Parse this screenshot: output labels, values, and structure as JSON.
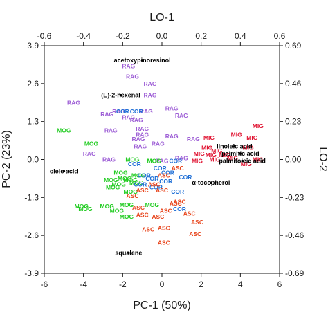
{
  "chart_data": {
    "type": "scatter",
    "title": "",
    "xlabel": "PC-1 (50%)",
    "ylabel": "PC-2 (23%)",
    "x2label": "LO-1",
    "y2label": "LO-2",
    "xlim": [
      -6,
      6
    ],
    "ylim": [
      -3.9,
      3.9
    ],
    "x2lim": [
      -0.6,
      0.6
    ],
    "y2lim": [
      -0.69,
      0.69
    ],
    "xticks": [
      "-6",
      "-4",
      "-2",
      "0",
      "2",
      "4",
      "6"
    ],
    "yticks": [
      "3.9",
      "2.6",
      "1.3",
      "0.0",
      "-1.3",
      "-2.6",
      "-3.9"
    ],
    "x2ticks": [
      "-0.6",
      "-0.4",
      "-0.2",
      "0.0",
      "0.2",
      "0.4",
      "0.6"
    ],
    "y2ticks": [
      "0.69",
      "0.46",
      "0.23",
      "0.00",
      "-0.23",
      "-0.46",
      "-0.69"
    ],
    "grid": false,
    "colors": {
      "RAG": "#9e5fd6",
      "MIG": "#e0112f",
      "MOG": "#22cc22",
      "COR": "#1f6fd6",
      "ASC": "#e8451c",
      "loading": "#000000"
    },
    "series": [
      {
        "name": "RAG",
        "points": [
          {
            "x": -1.7,
            "y": 3.2
          },
          {
            "x": -1.5,
            "y": 2.85
          },
          {
            "x": -0.6,
            "y": 2.6
          },
          {
            "x": -4.5,
            "y": 1.95
          },
          {
            "x": -2.2,
            "y": 1.65
          },
          {
            "x": -1.7,
            "y": 1.45
          },
          {
            "x": -0.8,
            "y": 1.65
          },
          {
            "x": -0.6,
            "y": 2.2
          },
          {
            "x": 0.5,
            "y": 1.75
          },
          {
            "x": 1.0,
            "y": 1.5
          },
          {
            "x": -2.8,
            "y": 1.55
          },
          {
            "x": -1.3,
            "y": 1.35
          },
          {
            "x": -2.6,
            "y": 1.0
          },
          {
            "x": -1.0,
            "y": 0.85
          },
          {
            "x": -0.2,
            "y": 0.55
          },
          {
            "x": 0.5,
            "y": 0.8
          },
          {
            "x": -1.1,
            "y": 0.45
          },
          {
            "x": -3.7,
            "y": 0.2
          },
          {
            "x": -2.7,
            "y": 0.0
          },
          {
            "x": 1.6,
            "y": 0.7
          },
          {
            "x": 1.0,
            "y": 0.05
          },
          {
            "x": 0.0,
            "y": -0.05
          },
          {
            "x": -1.0,
            "y": 1.05
          },
          {
            "x": -1.2,
            "y": 0.7
          }
        ]
      },
      {
        "name": "MIG",
        "points": [
          {
            "x": 4.9,
            "y": 1.15
          },
          {
            "x": 3.8,
            "y": 0.85
          },
          {
            "x": 4.6,
            "y": 0.75
          },
          {
            "x": 4.4,
            "y": 0.4
          },
          {
            "x": 2.4,
            "y": 0.75
          },
          {
            "x": 2.3,
            "y": 0.4
          },
          {
            "x": 1.9,
            "y": 0.2
          },
          {
            "x": 2.5,
            "y": 0.15
          },
          {
            "x": 4.9,
            "y": 0.0
          },
          {
            "x": 3.6,
            "y": 0.05
          },
          {
            "x": 4.3,
            "y": -0.15
          },
          {
            "x": 2.7,
            "y": 0.0
          },
          {
            "x": 3.2,
            "y": 0.15
          },
          {
            "x": 1.8,
            "y": -0.05
          },
          {
            "x": 2.8,
            "y": 0.3
          }
        ]
      },
      {
        "name": "MOG",
        "points": [
          {
            "x": -5.0,
            "y": 1.0
          },
          {
            "x": -3.6,
            "y": 0.55
          },
          {
            "x": -1.5,
            "y": 0.0
          },
          {
            "x": -0.4,
            "y": -0.05
          },
          {
            "x": -2.1,
            "y": -0.45
          },
          {
            "x": -2.6,
            "y": -0.7
          },
          {
            "x": -2.5,
            "y": -0.95
          },
          {
            "x": -2.2,
            "y": -0.85
          },
          {
            "x": -1.2,
            "y": -0.55
          },
          {
            "x": -1.3,
            "y": -0.8
          },
          {
            "x": -1.6,
            "y": -0.7
          },
          {
            "x": -4.1,
            "y": -1.6
          },
          {
            "x": -3.9,
            "y": -1.7
          },
          {
            "x": -2.8,
            "y": -1.6
          },
          {
            "x": -2.3,
            "y": -1.75
          },
          {
            "x": -1.8,
            "y": -1.55
          },
          {
            "x": -1.8,
            "y": -1.95
          },
          {
            "x": -0.5,
            "y": -1.55
          },
          {
            "x": -1.6,
            "y": -1.1
          },
          {
            "x": -1.9,
            "y": -0.65
          }
        ]
      },
      {
        "name": "COR",
        "points": [
          {
            "x": -2.0,
            "y": 1.65
          },
          {
            "x": -1.3,
            "y": 1.65
          },
          {
            "x": -1.4,
            "y": -0.15
          },
          {
            "x": -0.1,
            "y": -0.3
          },
          {
            "x": 0.3,
            "y": -0.45
          },
          {
            "x": 0.7,
            "y": -0.05
          },
          {
            "x": -0.9,
            "y": -0.55
          },
          {
            "x": -1.1,
            "y": -0.85
          },
          {
            "x": -0.3,
            "y": -0.95
          },
          {
            "x": 0.8,
            "y": -1.1
          },
          {
            "x": 0.9,
            "y": -1.7
          },
          {
            "x": 1.2,
            "y": -0.6
          },
          {
            "x": -0.5,
            "y": -0.65
          },
          {
            "x": 0.2,
            "y": -0.75
          }
        ]
      },
      {
        "name": "ASC",
        "points": [
          {
            "x": 0.8,
            "y": -0.3
          },
          {
            "x": 0.1,
            "y": -0.55
          },
          {
            "x": -0.4,
            "y": -0.85
          },
          {
            "x": 0.0,
            "y": -1.05
          },
          {
            "x": -1.0,
            "y": -1.05
          },
          {
            "x": -1.5,
            "y": -1.25
          },
          {
            "x": -1.2,
            "y": -1.65
          },
          {
            "x": -1.0,
            "y": -1.9
          },
          {
            "x": 0.7,
            "y": -1.5
          },
          {
            "x": 0.2,
            "y": -1.75
          },
          {
            "x": -0.2,
            "y": -1.95
          },
          {
            "x": 0.1,
            "y": -2.35
          },
          {
            "x": 1.8,
            "y": -2.15
          },
          {
            "x": 1.7,
            "y": -2.55
          },
          {
            "x": 0.1,
            "y": -2.85
          },
          {
            "x": -0.7,
            "y": -2.4
          },
          {
            "x": 1.4,
            "y": -1.85
          },
          {
            "x": 0.9,
            "y": -1.45
          }
        ]
      }
    ],
    "loadings": [
      {
        "label": "acetoxypinoresinol",
        "x": -1.0,
        "y": 3.4
      },
      {
        "label": "(E)-2-hexenal",
        "x": -2.1,
        "y": 2.2
      },
      {
        "label": "oleic acid",
        "x": -5.0,
        "y": -0.4
      },
      {
        "label": "linoleic acid",
        "x": 3.7,
        "y": 0.45
      },
      {
        "label": "palmitic acid",
        "x": 4.0,
        "y": 0.2
      },
      {
        "label": "palmitoleic acid",
        "x": 4.1,
        "y": -0.05
      },
      {
        "label": "α-tocopherol",
        "x": 2.5,
        "y": -0.8
      },
      {
        "label": "squalene",
        "x": -1.7,
        "y": -3.2
      }
    ]
  }
}
